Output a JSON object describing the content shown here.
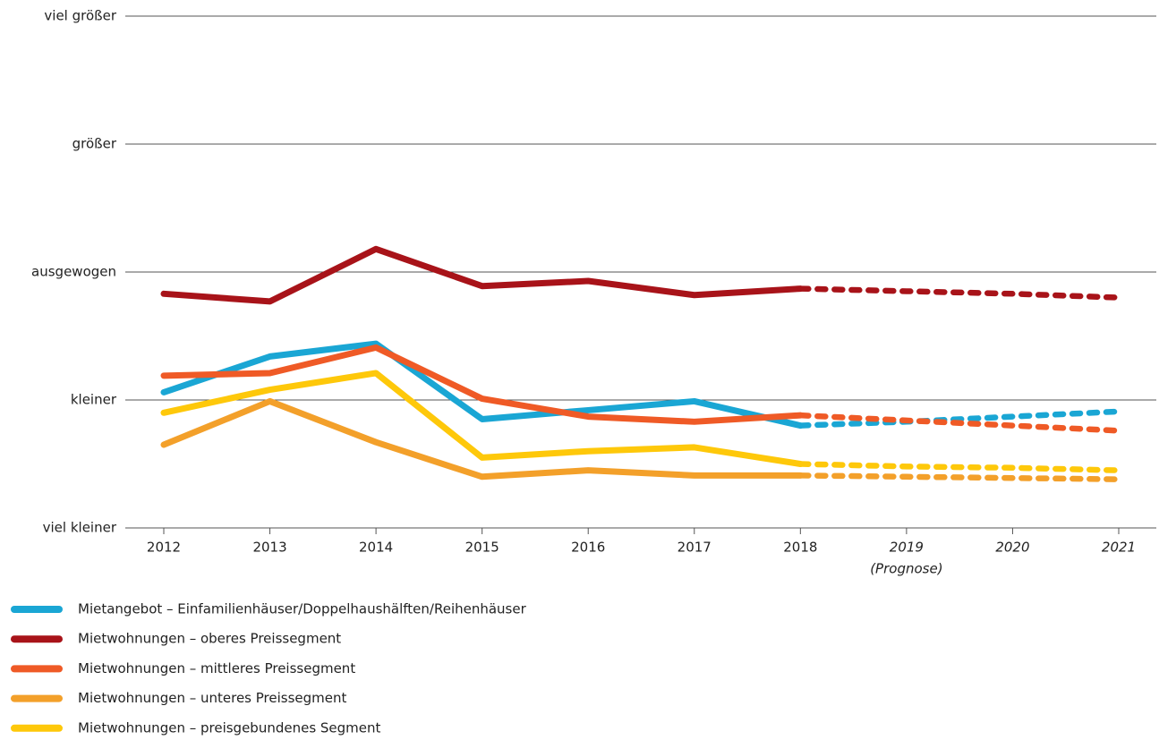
{
  "chart_data": {
    "type": "line",
    "categories": [
      "2012",
      "2013",
      "2014",
      "2015",
      "2016",
      "2017",
      "2018",
      "2019",
      "2020",
      "2021"
    ],
    "forecast_start_index": 6,
    "annotations": [
      "(Prognose)"
    ],
    "ylim": [
      -2,
      2
    ],
    "yticks": [
      {
        "value": -2,
        "label": "viel kleiner"
      },
      {
        "value": -1,
        "label": "kleiner"
      },
      {
        "value": 0,
        "label": "ausgewogen"
      },
      {
        "value": 1,
        "label": "größer"
      },
      {
        "value": 2,
        "label": "viel größer"
      }
    ],
    "grid": true,
    "legend": "bottom-left",
    "series": [
      {
        "name": "Mietangebot – Einfamilienhäuser/Doppelhaushälften/Reihenhäuser",
        "color": "#1aa6d4",
        "values": [
          -0.94,
          -0.66,
          -0.56,
          -1.15,
          -1.08,
          -1.01,
          -1.2,
          -1.17,
          -1.13,
          -1.09
        ]
      },
      {
        "name": "Mietwohnungen – oberes Preissegment",
        "color": "#a81319",
        "values": [
          -0.17,
          -0.23,
          0.18,
          -0.11,
          -0.07,
          -0.18,
          -0.13,
          -0.15,
          -0.17,
          -0.2
        ]
      },
      {
        "name": "Mietwohnungen – mittleres Preissegment",
        "color": "#ef5a26",
        "values": [
          -0.81,
          -0.79,
          -0.59,
          -0.99,
          -1.13,
          -1.17,
          -1.12,
          -1.16,
          -1.2,
          -1.24
        ]
      },
      {
        "name": "Mietwohnungen – unteres Preissegment",
        "color": "#f3a02a",
        "values": [
          -1.35,
          -1.01,
          -1.33,
          -1.6,
          -1.55,
          -1.59,
          -1.59,
          -1.6,
          -1.61,
          -1.62
        ]
      },
      {
        "name": "Mietwohnungen – preisgebundenes Segment",
        "color": "#fec80a",
        "values": [
          -1.1,
          -0.92,
          -0.79,
          -1.45,
          -1.4,
          -1.37,
          -1.5,
          -1.52,
          -1.53,
          -1.55
        ]
      }
    ]
  }
}
